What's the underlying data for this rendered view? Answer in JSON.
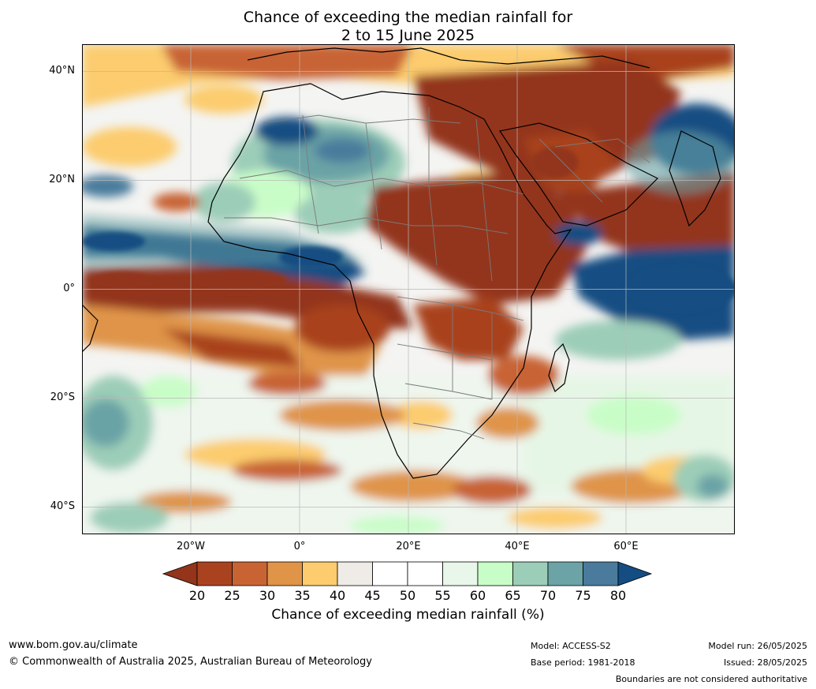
{
  "title": {
    "line1": "Chance of exceeding the median rainfall for",
    "line2": "2 to 15 June 2025"
  },
  "map": {
    "region": "Africa and surrounding oceans",
    "projection": "plate carree",
    "lon_range": [
      -40,
      80
    ],
    "lat_range": [
      -45,
      45
    ],
    "lat_labels": [
      "40°N",
      "20°N",
      "0°",
      "20°S",
      "40°S"
    ],
    "lon_labels": [
      "20°W",
      "0°",
      "20°E",
      "40°E",
      "60°E"
    ],
    "gridlines": true,
    "features": [
      "coastlines",
      "country boundaries",
      "probability contours"
    ]
  },
  "colorbar": {
    "ticks": [
      "20",
      "25",
      "30",
      "35",
      "40",
      "45",
      "50",
      "55",
      "60",
      "65",
      "70",
      "75",
      "80"
    ],
    "colors": [
      "#93341b",
      "#a9431f",
      "#c86434",
      "#df9448",
      "#fccc6e",
      "#efebe6",
      "#ffffff",
      "#ffffff",
      "#e9f6ea",
      "#c9fdc8",
      "#9ccdb8",
      "#6ba3a6",
      "#4a7b9c",
      "#134d82"
    ],
    "extend": "both",
    "label": "Chance of exceeding median rainfall (%)"
  },
  "footer": {
    "website": "www.bom.gov.au/climate",
    "copyright": "© Commonwealth of Australia 2025, Australian Bureau of Meteorology",
    "model": "Model: ACCESS-S2",
    "base_period": "Base period: 1981-2018",
    "model_run": "Model run: 26/05/2025",
    "issued": "Issued: 28/05/2025",
    "disclaimer": "Boundaries are not considered authoritative"
  }
}
